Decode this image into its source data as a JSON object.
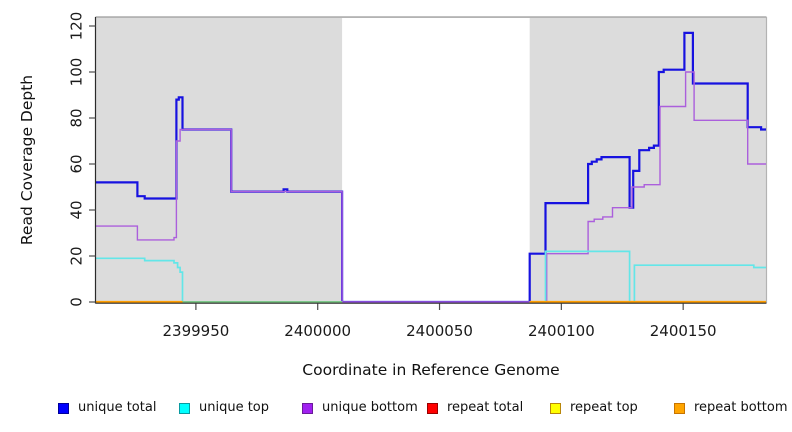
{
  "axes": {
    "y_title": "Read Coverage Depth",
    "x_title": "Coordinate in Reference Genome",
    "x_ticks": [
      {
        "v": 2399950,
        "label": "2399950"
      },
      {
        "v": 2400000,
        "label": "2400000"
      },
      {
        "v": 2400050,
        "label": "2400050"
      },
      {
        "v": 2400100,
        "label": "2400100"
      },
      {
        "v": 2400150,
        "label": "2400150"
      }
    ],
    "y_ticks": [
      {
        "v": 0,
        "label": "0"
      },
      {
        "v": 20,
        "label": "20"
      },
      {
        "v": 40,
        "label": "40"
      },
      {
        "v": 60,
        "label": "60"
      },
      {
        "v": 80,
        "label": "80"
      },
      {
        "v": 100,
        "label": "100"
      },
      {
        "v": 120,
        "label": "120"
      }
    ],
    "panel_bg": "#dcdcdc",
    "masked_region_bg": "#ffffff"
  },
  "chart_data": {
    "type": "line",
    "title": "",
    "xlabel": "Coordinate in Reference Genome",
    "ylabel": "Read Coverage Depth",
    "x_range": [
      2399909,
      2400184
    ],
    "y_range": [
      0,
      120
    ],
    "grid": false,
    "legend_position": "bottom",
    "masked_region": {
      "x_start": 2400010,
      "x_end": 2400087
    },
    "series": [
      {
        "name": "unique total",
        "color": "#1712e0",
        "width": 2.2,
        "segments": [
          [
            [
              2399909,
              52
            ],
            [
              2399926,
              52
            ],
            [
              2399926,
              46
            ],
            [
              2399929,
              46
            ],
            [
              2399929,
              45
            ],
            [
              2399942,
              45
            ],
            [
              2399942,
              88
            ],
            [
              2399943,
              88
            ],
            [
              2399943,
              89
            ],
            [
              2399944.5,
              89
            ],
            [
              2399944.5,
              75
            ],
            [
              2399964.5,
              75
            ],
            [
              2399964.5,
              48
            ],
            [
              2399986,
              48
            ],
            [
              2399986,
              49
            ],
            [
              2399987.5,
              49
            ],
            [
              2399987.5,
              48
            ],
            [
              2400010,
              48
            ],
            [
              2400010,
              0
            ],
            [
              2400087,
              0
            ],
            [
              2400087,
              21
            ],
            [
              2400093.5,
              21
            ],
            [
              2400093.5,
              43
            ],
            [
              2400111,
              43
            ],
            [
              2400111,
              60
            ],
            [
              2400112.5,
              60
            ],
            [
              2400112.5,
              61
            ],
            [
              2400114.5,
              61
            ],
            [
              2400114.5,
              62
            ],
            [
              2400116.5,
              62
            ],
            [
              2400116.5,
              63
            ],
            [
              2400128,
              63
            ],
            [
              2400128,
              41
            ],
            [
              2400129.5,
              41
            ],
            [
              2400129.5,
              57
            ],
            [
              2400132,
              57
            ],
            [
              2400132,
              66
            ],
            [
              2400136,
              66
            ],
            [
              2400136,
              67
            ],
            [
              2400138,
              67
            ],
            [
              2400138,
              68
            ],
            [
              2400140,
              68
            ],
            [
              2400140,
              100
            ],
            [
              2400142,
              100
            ],
            [
              2400142,
              101
            ],
            [
              2400150.5,
              101
            ],
            [
              2400150.5,
              117
            ],
            [
              2400154,
              117
            ],
            [
              2400154,
              95
            ],
            [
              2400176.5,
              95
            ],
            [
              2400176.5,
              76
            ],
            [
              2400182,
              76
            ],
            [
              2400182,
              75
            ],
            [
              2400184,
              75
            ]
          ]
        ]
      },
      {
        "name": "unique bottom",
        "color": "#ab5fdc",
        "width": 1.4,
        "segments": [
          [
            [
              2399909,
              33
            ],
            [
              2399926,
              33
            ],
            [
              2399926,
              27
            ],
            [
              2399941,
              27
            ],
            [
              2399941,
              28
            ],
            [
              2399942,
              28
            ],
            [
              2399942,
              70
            ],
            [
              2399943.5,
              70
            ],
            [
              2399943.5,
              75
            ],
            [
              2399964.5,
              75
            ],
            [
              2399964.5,
              48
            ],
            [
              2400010,
              48
            ],
            [
              2400010,
              0
            ],
            [
              2400094,
              0
            ],
            [
              2400094,
              21
            ],
            [
              2400111,
              21
            ],
            [
              2400111,
              35
            ],
            [
              2400113.5,
              35
            ],
            [
              2400113.5,
              36
            ],
            [
              2400117,
              36
            ],
            [
              2400117,
              37
            ],
            [
              2400121,
              37
            ],
            [
              2400121,
              41
            ],
            [
              2400129,
              41
            ],
            [
              2400129,
              50
            ],
            [
              2400134,
              50
            ],
            [
              2400134,
              51
            ],
            [
              2400140.5,
              51
            ],
            [
              2400140.5,
              85
            ],
            [
              2400151,
              85
            ],
            [
              2400151,
              100
            ],
            [
              2400154.5,
              100
            ],
            [
              2400154.5,
              79
            ],
            [
              2400176.5,
              79
            ],
            [
              2400176.5,
              60
            ],
            [
              2400184,
              60
            ]
          ]
        ]
      },
      {
        "name": "unique top",
        "color": "#63e6e8",
        "width": 1.7,
        "segments": [
          [
            [
              2399909,
              19
            ],
            [
              2399929,
              19
            ],
            [
              2399929,
              18
            ],
            [
              2399941,
              18
            ],
            [
              2399941,
              17
            ],
            [
              2399942.5,
              17
            ],
            [
              2399942.5,
              15
            ],
            [
              2399943.5,
              15
            ],
            [
              2399943.5,
              13
            ],
            [
              2399944.5,
              13
            ],
            [
              2399944.5,
              0
            ],
            [
              2400010,
              0
            ]
          ],
          [
            [
              2400087,
              0
            ],
            [
              2400093.5,
              0
            ],
            [
              2400093.5,
              22
            ],
            [
              2400128,
              22
            ],
            [
              2400128,
              0
            ],
            [
              2400130,
              0
            ],
            [
              2400130,
              16
            ],
            [
              2400179,
              16
            ],
            [
              2400179,
              15
            ],
            [
              2400184,
              15
            ]
          ]
        ]
      },
      {
        "name": "zero baseline (green)",
        "color": "#7cc47c",
        "width": 1.7,
        "segments": [
          [
            [
              2399944.5,
              0
            ],
            [
              2400010,
              0
            ]
          ],
          [
            [
              2400087,
              0
            ],
            [
              2400093.5,
              0
            ]
          ]
        ]
      },
      {
        "name": "repeat bottom",
        "color": "#ff9e00",
        "width": 2.3,
        "segments": [
          [
            [
              2399909,
              0
            ],
            [
              2399944.5,
              0
            ]
          ],
          [
            [
              2400087,
              0
            ],
            [
              2400184,
              0
            ]
          ]
        ]
      }
    ]
  },
  "legend": {
    "items": [
      {
        "label": "unique total",
        "fill": "#0000ff",
        "border": "#000099"
      },
      {
        "label": "unique top",
        "fill": "#00ffff",
        "border": "#0a9aa0"
      },
      {
        "label": "unique bottom",
        "fill": "#a020f0",
        "border": "#6a1b9a"
      },
      {
        "label": "repeat total",
        "fill": "#ff0000",
        "border": "#990000"
      },
      {
        "label": "repeat top",
        "fill": "#ffff00",
        "border": "#b8860b"
      },
      {
        "label": "repeat bottom",
        "fill": "#ffa500",
        "border": "#c77400"
      }
    ]
  }
}
